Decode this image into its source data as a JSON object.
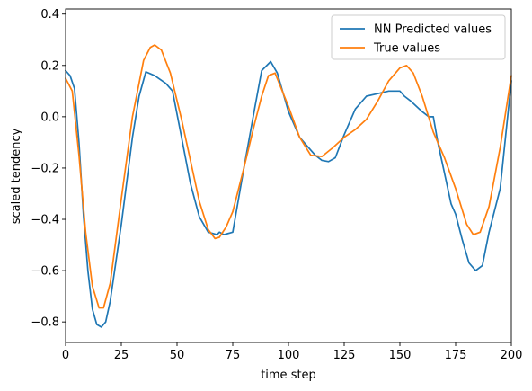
{
  "chart_data": {
    "type": "line",
    "xlabel": "time step",
    "ylabel": "scaled tendency",
    "xlim": [
      0,
      200
    ],
    "ylim": [
      -0.88,
      0.42
    ],
    "xticks": [
      0,
      25,
      50,
      75,
      100,
      125,
      150,
      175,
      200
    ],
    "yticks": [
      -0.8,
      -0.6,
      -0.4,
      -0.2,
      0.0,
      0.2,
      0.4
    ],
    "ytick_labels": [
      "−0.8",
      "−0.6",
      "−0.4",
      "−0.2",
      "0.0",
      "0.2",
      "0.4"
    ],
    "grid": false,
    "legend_position": "top-right",
    "series": [
      {
        "name": "NN Predicted values",
        "color": "#1f77b4",
        "x": [
          0,
          2,
          4,
          6,
          8,
          10,
          12,
          14,
          16,
          18,
          20,
          25,
          30,
          33,
          36,
          40,
          45,
          48,
          52,
          56,
          60,
          64,
          68,
          69,
          71,
          75,
          80,
          85,
          88,
          92,
          95,
          100,
          105,
          108,
          112,
          115,
          118,
          121,
          125,
          130,
          135,
          140,
          145,
          150,
          152,
          155,
          160,
          163,
          165,
          167,
          170,
          173,
          175,
          178,
          181,
          184,
          187,
          190,
          195,
          200
        ],
        "y": [
          0.18,
          0.16,
          0.11,
          -0.1,
          -0.38,
          -0.6,
          -0.75,
          -0.81,
          -0.82,
          -0.8,
          -0.72,
          -0.42,
          -0.08,
          0.08,
          0.175,
          0.16,
          0.13,
          0.1,
          -0.08,
          -0.26,
          -0.39,
          -0.45,
          -0.46,
          -0.45,
          -0.46,
          -0.45,
          -0.2,
          0.04,
          0.18,
          0.215,
          0.17,
          0.02,
          -0.08,
          -0.11,
          -0.15,
          -0.17,
          -0.175,
          -0.16,
          -0.07,
          0.03,
          0.08,
          0.09,
          0.1,
          0.1,
          0.08,
          0.06,
          0.02,
          0.0,
          0.0,
          -0.1,
          -0.22,
          -0.34,
          -0.38,
          -0.48,
          -0.57,
          -0.6,
          -0.58,
          -0.45,
          -0.28,
          0.14
        ]
      },
      {
        "name": "True values",
        "color": "#ff7f0e",
        "x": [
          0,
          3,
          6,
          9,
          12,
          15,
          17,
          20,
          25,
          30,
          35,
          38,
          40,
          43,
          47,
          52,
          56,
          60,
          64,
          67,
          69,
          72,
          75,
          80,
          85,
          88,
          91,
          94,
          100,
          105,
          110,
          115,
          120,
          125,
          130,
          135,
          140,
          145,
          150,
          153,
          156,
          160,
          165,
          170,
          175,
          180,
          183,
          186,
          190,
          195,
          200
        ],
        "y": [
          0.15,
          0.1,
          -0.15,
          -0.45,
          -0.66,
          -0.745,
          -0.745,
          -0.65,
          -0.32,
          0.0,
          0.22,
          0.27,
          0.28,
          0.26,
          0.17,
          -0.01,
          -0.17,
          -0.33,
          -0.44,
          -0.475,
          -0.47,
          -0.43,
          -0.37,
          -0.2,
          -0.02,
          0.08,
          0.16,
          0.17,
          0.04,
          -0.08,
          -0.15,
          -0.155,
          -0.12,
          -0.08,
          -0.05,
          -0.01,
          0.06,
          0.14,
          0.19,
          0.2,
          0.17,
          0.08,
          -0.06,
          -0.16,
          -0.28,
          -0.42,
          -0.46,
          -0.45,
          -0.35,
          -0.12,
          0.16
        ]
      }
    ]
  }
}
